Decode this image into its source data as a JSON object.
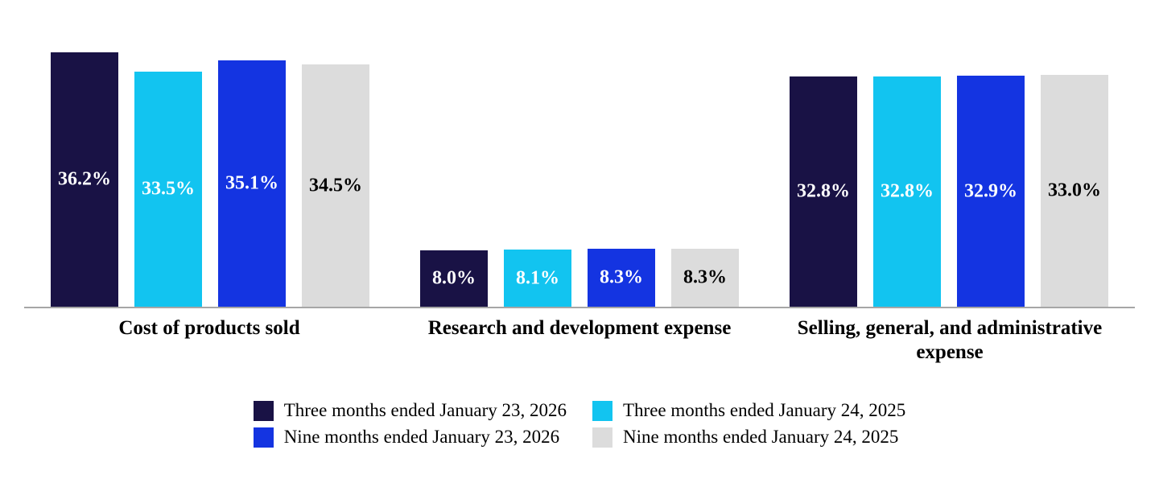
{
  "chart_data": {
    "type": "bar",
    "title": "",
    "categories": [
      "Cost of products sold",
      "Research and development expense",
      "Selling, general, and administrative expense"
    ],
    "series": [
      {
        "name": "Three months ended January 23, 2026",
        "color": "#191245",
        "label_color": "#ffffff",
        "values": [
          36.2,
          8.0,
          32.8
        ]
      },
      {
        "name": "Three months ended January 24, 2025",
        "color": "#12c4f0",
        "label_color": "#ffffff",
        "values": [
          33.5,
          8.1,
          32.8
        ]
      },
      {
        "name": "Nine months ended January 23, 2026",
        "color": "#1434e1",
        "label_color": "#ffffff",
        "values": [
          35.1,
          8.3,
          32.9
        ]
      },
      {
        "name": "Nine months ended January 24, 2025",
        "color": "#dcdcdc",
        "label_color": "#000000",
        "values": [
          34.5,
          8.3,
          33.0
        ]
      }
    ],
    "value_suffix": "%",
    "value_decimals": 1,
    "xlabel": "",
    "ylabel": "",
    "ylim": [
      0,
      36.2
    ],
    "grid": false,
    "legend_position": "bottom",
    "axis_line_color": "#a6a6a6"
  }
}
